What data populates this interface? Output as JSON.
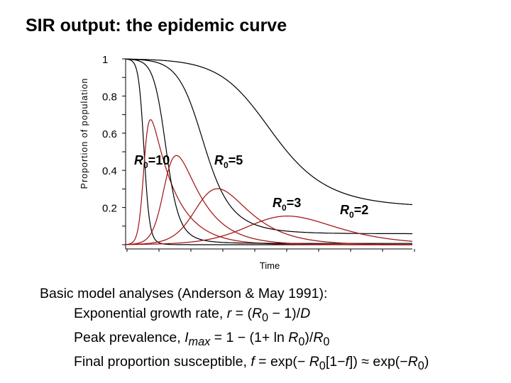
{
  "title": "SIR output: the epidemic curve",
  "chart_data": {
    "type": "line",
    "xlabel": "Time",
    "ylabel": "Proportion of population",
    "ylim": [
      0,
      1
    ],
    "yticks": [
      "0.2",
      "0.4",
      "0.6",
      "0.8",
      "1"
    ],
    "colors": {
      "susceptible": "#000000",
      "infected": "#a01010"
    },
    "scenarios": [
      {
        "label_main": "R",
        "label_sub": "0",
        "label_rest": "=10",
        "R0": 10
      },
      {
        "label_main": "R",
        "label_sub": "0",
        "label_rest": "=5",
        "R0": 5
      },
      {
        "label_main": "R",
        "label_sub": "0",
        "label_rest": "=3",
        "R0": 3
      },
      {
        "label_main": "R",
        "label_sub": "0",
        "label_rest": "=2",
        "R0": 2
      }
    ]
  },
  "notes": {
    "heading": "Basic model analyses  (Anderson & May 1991):",
    "growth": {
      "prefix": "Exponential growth rate, ",
      "r": "r",
      "eq": " = (",
      "R": "R",
      "sub0": "0",
      "tail": " − 1)/",
      "D": "D"
    },
    "peak": {
      "prefix": "Peak prevalence, ",
      "I": "I",
      "max": "max",
      "mid": " = 1 − (1+ ln ",
      "R": "R",
      "sub0": "0",
      "close": ")/",
      "R2": "R",
      "sub0b": "0"
    },
    "final": {
      "prefix": "Final proportion susceptible, ",
      "f": "f",
      "mid": " = exp(− ",
      "R": "R",
      "sub0": "0",
      "bracket": "[1−",
      "f2": "f",
      "approx": "]) ≈ exp(−",
      "R2": "R",
      "sub0b": "0",
      "end": ")"
    }
  }
}
